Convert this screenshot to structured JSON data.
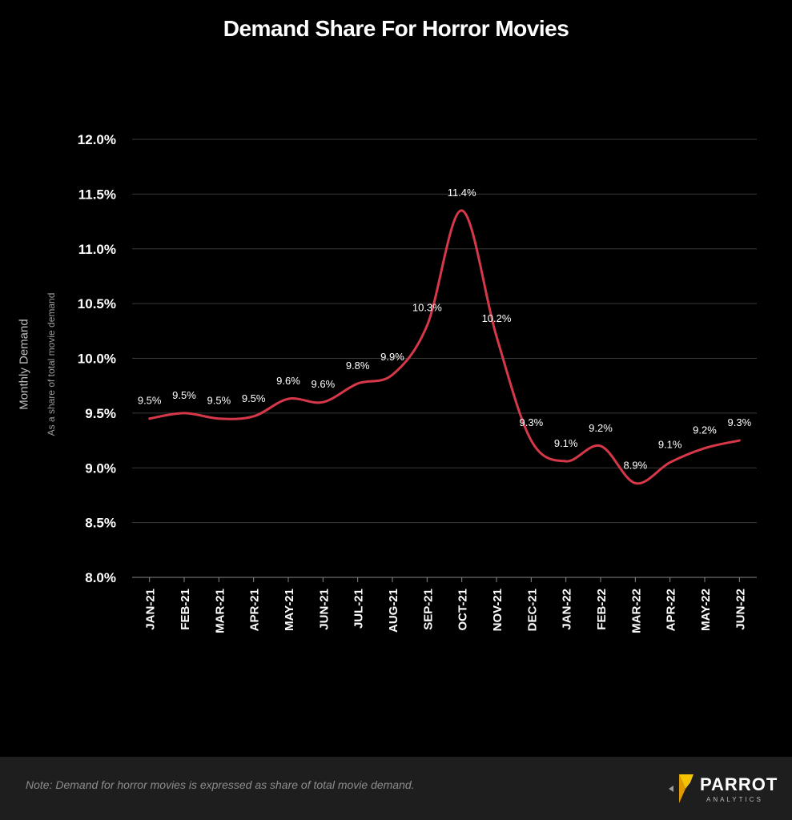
{
  "chart_data": {
    "type": "line",
    "title": "Demand Share For Horror Movies",
    "ylabel": "Monthly Demand",
    "ylabel_sub": "As a share of total movie demand",
    "categories": [
      "JAN-21",
      "FEB-21",
      "MAR-21",
      "APR-21",
      "MAY-21",
      "JUN-21",
      "JUL-21",
      "AUG-21",
      "SEP-21",
      "OCT-21",
      "NOV-21",
      "DEC-21",
      "JAN-22",
      "FEB-22",
      "MAR-22",
      "APR-22",
      "MAY-22",
      "JUN-22"
    ],
    "values": [
      9.45,
      9.5,
      9.45,
      9.47,
      9.63,
      9.6,
      9.77,
      9.85,
      10.3,
      11.35,
      10.2,
      9.25,
      9.06,
      9.2,
      8.86,
      9.05,
      9.18,
      9.25
    ],
    "data_labels": [
      "9.5%",
      "9.5%",
      "9.5%",
      "9.5%",
      "9.6%",
      "9.6%",
      "9.8%",
      "9.9%",
      "10.3%",
      "11.4%",
      "10.2%",
      "9.3%",
      "9.1%",
      "9.2%",
      "8.9%",
      "9.1%",
      "9.2%",
      "9.3%"
    ],
    "yticks": [
      "8.0%",
      "8.5%",
      "9.0%",
      "9.5%",
      "10.0%",
      "10.5%",
      "11.0%",
      "11.5%",
      "12.0%"
    ],
    "ylim": [
      8.0,
      12.0
    ],
    "grid": true,
    "line_color": "#d6384a"
  },
  "footer": {
    "note": "Note: Demand  for horror movies is expressed as share of total movie demand.",
    "logo_text": "PARROT",
    "logo_sub": "ANALYTICS"
  }
}
